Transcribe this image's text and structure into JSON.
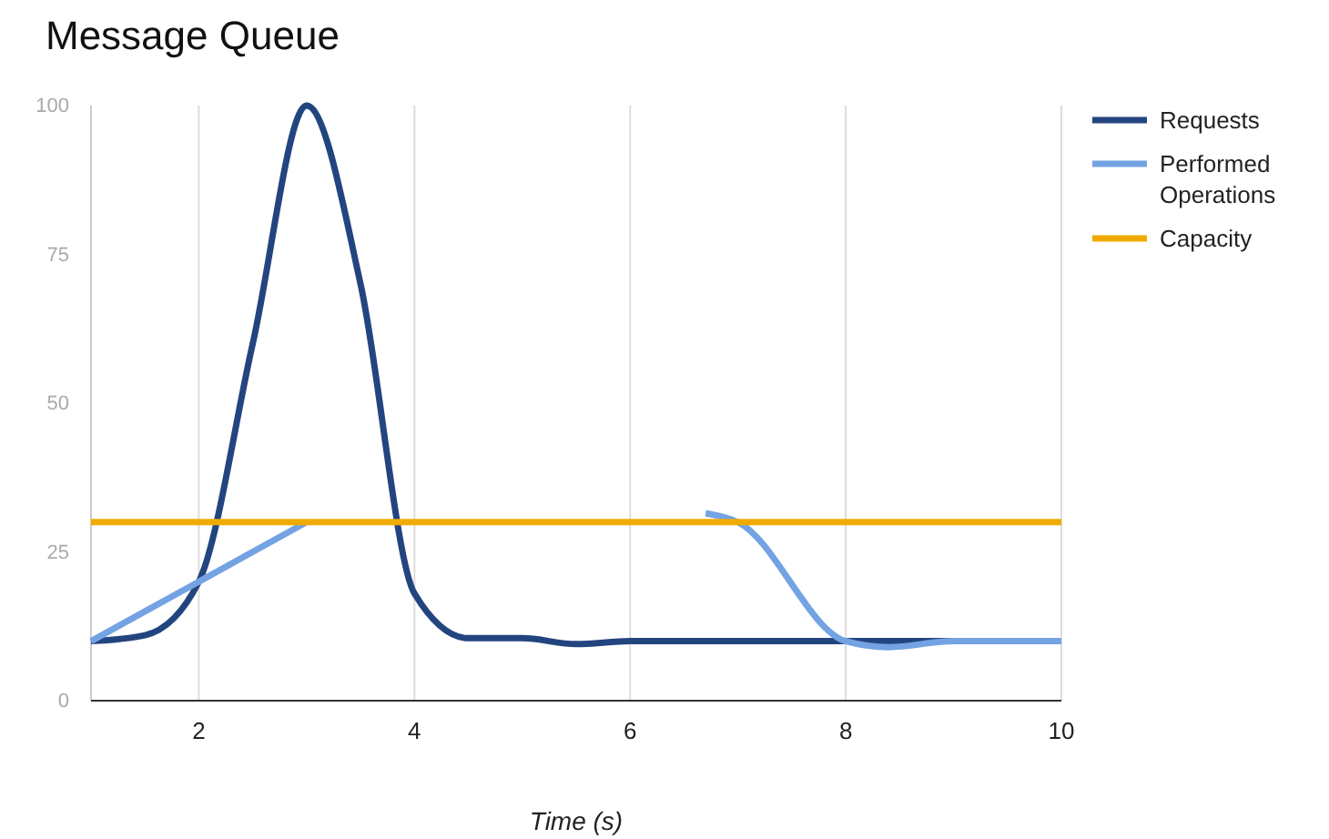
{
  "chart_data": {
    "type": "line",
    "title": "Message Queue",
    "xlabel": "Time (s)",
    "xlim": [
      1,
      10
    ],
    "xticks": [
      2,
      4,
      6,
      8,
      10
    ],
    "ylim": [
      0,
      100
    ],
    "yticks": [
      0,
      25,
      50,
      75,
      100
    ],
    "grid": "x",
    "legend": "right",
    "marker": "none",
    "line_style": "solid",
    "series": [
      {
        "name": "Requests",
        "color": "#23457f",
        "x": [
          1,
          1.5,
          2,
          2.5,
          3,
          3.5,
          4,
          4.5,
          5,
          5.5,
          6,
          7,
          8,
          9,
          10
        ],
        "values": [
          10,
          11,
          20,
          60,
          100,
          70,
          18,
          10.5,
          10.5,
          9.5,
          10,
          10,
          10,
          10,
          10
        ]
      },
      {
        "name": "Performed Operations",
        "color": "#74a3e3",
        "x": [
          1,
          2,
          3,
          4,
          5,
          6,
          6.7,
          7,
          8,
          8.4,
          9,
          10
        ],
        "values": [
          10,
          20,
          30,
          null,
          null,
          null,
          31.5,
          30,
          10,
          9,
          10,
          10
        ]
      },
      {
        "name": "Capacity",
        "color": "#f0ab00",
        "x": [
          1,
          10
        ],
        "values": [
          30,
          30
        ]
      }
    ]
  }
}
